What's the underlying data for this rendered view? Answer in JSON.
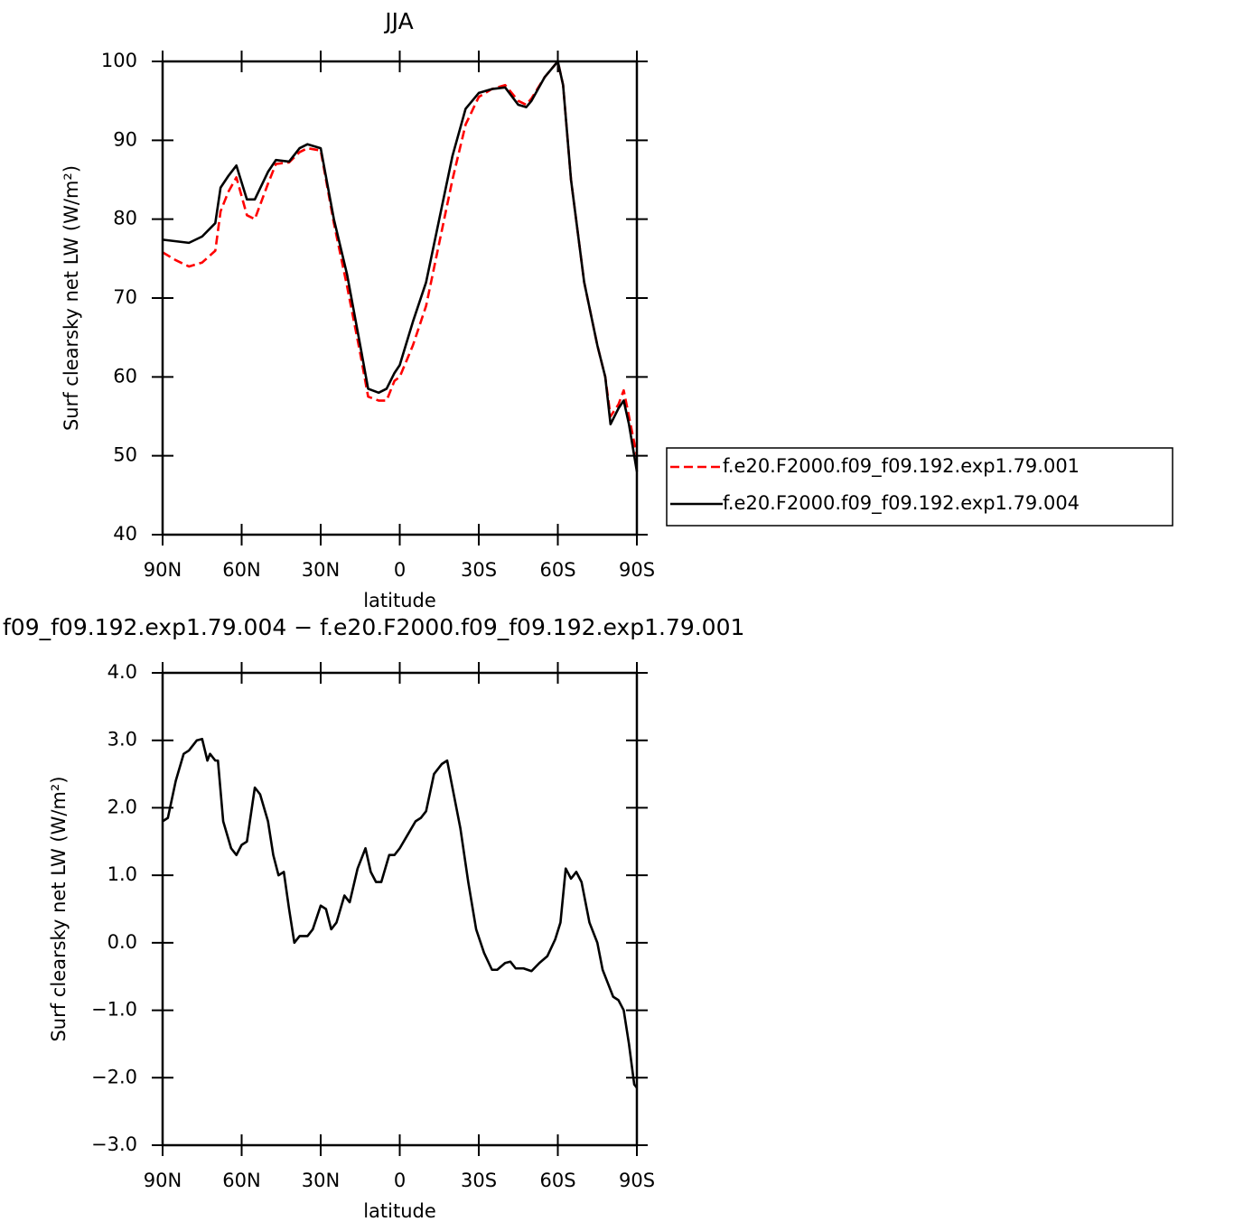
{
  "chart_data": [
    {
      "type": "line",
      "title": "JJA",
      "xlabel": "latitude",
      "ylabel": "Surf clearsky net LW (W/m²)",
      "x": [
        90,
        85,
        80,
        75,
        70,
        68,
        65,
        62,
        58,
        55,
        50,
        47,
        42,
        38,
        35,
        30,
        25,
        20,
        15,
        12,
        8,
        5,
        2,
        0,
        -5,
        -10,
        -15,
        -20,
        -25,
        -30,
        -35,
        -40,
        -45,
        -48,
        -50,
        -55,
        -60,
        -62,
        -65,
        -70,
        -75,
        -78,
        -80,
        -83,
        -85,
        -87,
        -90
      ],
      "series": [
        {
          "name": "f.e20.F2000.f09_f09.192.exp1.79.001",
          "color": "#ff0000",
          "dashed": true,
          "values": [
            75.8,
            74.8,
            74,
            74.5,
            76,
            81,
            83.5,
            85.3,
            80.5,
            80,
            84.5,
            87,
            87.2,
            88.5,
            89,
            88.7,
            79.5,
            71.5,
            63,
            57.5,
            57,
            57,
            59.5,
            60,
            64,
            69,
            77,
            85,
            92,
            95.5,
            96.5,
            97,
            95,
            94.5,
            95.3,
            98,
            100,
            97,
            85,
            72,
            64,
            60,
            55,
            56.5,
            58.3,
            55,
            50
          ]
        },
        {
          "name": "f.e20.F2000.f09_f09.192.exp1.79.004",
          "color": "#000000",
          "dashed": false,
          "values": [
            77.4,
            77.2,
            77,
            77.8,
            79.5,
            84,
            85.5,
            86.8,
            82.5,
            82.5,
            86,
            87.5,
            87.3,
            89,
            89.5,
            89,
            80,
            73,
            64,
            58.5,
            58,
            58.5,
            60.5,
            61.5,
            67,
            72,
            80,
            88,
            94,
            96,
            96.5,
            96.7,
            94.5,
            94.2,
            95,
            98,
            100,
            97,
            85,
            72,
            64,
            60,
            54,
            56,
            57,
            54,
            48
          ]
        }
      ],
      "xlim": [
        90,
        -90
      ],
      "xticks": [
        {
          "value": 90,
          "label": "90N"
        },
        {
          "value": 60,
          "label": "60N"
        },
        {
          "value": 30,
          "label": "30N"
        },
        0,
        {
          "value": -30,
          "label": "30S"
        },
        {
          "value": -60,
          "label": "60S"
        },
        {
          "value": -90,
          "label": "90S"
        }
      ],
      "ylim": [
        40,
        100
      ],
      "yticks": [
        40,
        50,
        60,
        70,
        80,
        90,
        100
      ],
      "legend": "right"
    },
    {
      "type": "line",
      "title": "f09_f09.192.exp1.79.004 − f.e20.F2000.f09_f09.192.exp1.79.001",
      "xlabel": "latitude",
      "ylabel": "Surf clearsky net LW (W/m²)",
      "x": [
        90,
        88,
        85,
        82,
        80,
        77,
        75,
        73,
        72,
        70,
        69,
        67,
        64,
        62,
        60,
        58,
        55,
        53,
        50,
        48,
        46,
        44,
        42,
        40,
        38,
        35,
        33,
        30,
        28,
        26,
        24,
        21,
        19,
        16,
        13,
        11,
        9,
        7,
        4,
        2,
        0,
        -3,
        -6,
        -8,
        -10,
        -13,
        -16,
        -18,
        -20,
        -23,
        -26,
        -29,
        -32,
        -35,
        -37,
        -40,
        -42,
        -44,
        -47,
        -50,
        -53,
        -56,
        -59,
        -61,
        -63,
        -65,
        -67,
        -69,
        -72,
        -75,
        -77,
        -79,
        -81,
        -83,
        -85,
        -87,
        -89,
        -90
      ],
      "series": [
        {
          "name": "f09_f09.192.exp1.79.004 − f.e20.F2000.f09_f09.192.exp1.79.001",
          "color": "#000000",
          "dashed": false,
          "values": [
            1.8,
            1.85,
            2.4,
            2.8,
            2.85,
            3.0,
            3.02,
            2.7,
            2.8,
            2.7,
            2.7,
            1.8,
            1.4,
            1.3,
            1.45,
            1.5,
            2.3,
            2.2,
            1.8,
            1.3,
            1.0,
            1.05,
            0.5,
            0.0,
            0.1,
            0.1,
            0.2,
            0.55,
            0.5,
            0.2,
            0.3,
            0.7,
            0.6,
            1.1,
            1.4,
            1.05,
            0.9,
            0.9,
            1.3,
            1.3,
            1.4,
            1.6,
            1.8,
            1.85,
            1.95,
            2.5,
            2.65,
            2.7,
            2.3,
            1.7,
            0.9,
            0.2,
            -0.15,
            -0.4,
            -0.4,
            -0.3,
            -0.28,
            -0.38,
            -0.38,
            -0.42,
            -0.3,
            -0.2,
            0.05,
            0.3,
            1.1,
            0.95,
            1.05,
            0.9,
            0.3,
            0.0,
            -0.4,
            -0.6,
            -0.8,
            -0.85,
            -1.0,
            -1.5,
            -2.1,
            -2.15
          ]
        }
      ],
      "xlim": [
        90,
        -90
      ],
      "xticks": [
        {
          "value": 90,
          "label": "90N"
        },
        {
          "value": 60,
          "label": "60N"
        },
        {
          "value": 30,
          "label": "30N"
        },
        0,
        {
          "value": -30,
          "label": "30S"
        },
        {
          "value": -60,
          "label": "60S"
        },
        {
          "value": -90,
          "label": "90S"
        }
      ],
      "ylim": [
        -3,
        4
      ],
      "yticks": [
        {
          "value": -3,
          "label": "−3.0"
        },
        {
          "value": -2,
          "label": "−2.0"
        },
        {
          "value": -1,
          "label": "−1.0"
        },
        {
          "value": 0,
          "label": "0.0"
        },
        {
          "value": 1,
          "label": "1.0"
        },
        {
          "value": 2,
          "label": "2.0"
        },
        {
          "value": 3,
          "label": "3.0"
        },
        {
          "value": 4,
          "label": "4.0"
        }
      ]
    }
  ]
}
